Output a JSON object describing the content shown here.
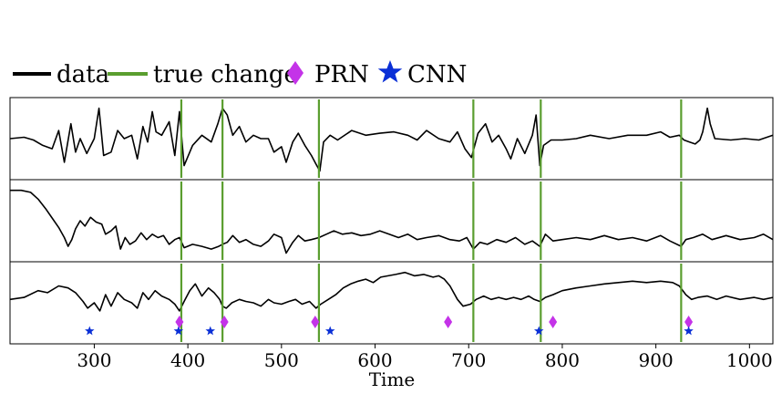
{
  "chart_data": {
    "type": "line",
    "xlabel": "Time",
    "xlim": [
      210,
      1025
    ],
    "xticks": [
      300,
      400,
      500,
      600,
      700,
      800,
      900,
      1000
    ],
    "grid": false,
    "legend": {
      "placement": "top-left",
      "entries": [
        {
          "label": "data",
          "marker": "line",
          "color": "#000000"
        },
        {
          "label": "true change",
          "marker": "line",
          "color": "#5a9e2f"
        },
        {
          "label": "PRN",
          "marker": "diamond",
          "color": "#c433e8"
        },
        {
          "label": "CNN",
          "marker": "star",
          "color": "#0a2fd6"
        }
      ]
    },
    "true_changes": [
      393,
      437,
      540,
      705,
      777,
      927
    ],
    "PRN_detections": [
      391,
      439,
      536,
      678,
      790,
      935
    ],
    "CNN_detections": [
      295,
      390,
      424,
      552,
      775,
      935
    ],
    "panels": [
      {
        "name": "",
        "points": [
          [
            210,
            0.5
          ],
          [
            225,
            0.52
          ],
          [
            235,
            0.48
          ],
          [
            245,
            0.4
          ],
          [
            255,
            0.35
          ],
          [
            262,
            0.62
          ],
          [
            268,
            0.15
          ],
          [
            275,
            0.72
          ],
          [
            280,
            0.3
          ],
          [
            285,
            0.5
          ],
          [
            292,
            0.28
          ],
          [
            300,
            0.5
          ],
          [
            305,
            0.95
          ],
          [
            310,
            0.25
          ],
          [
            318,
            0.3
          ],
          [
            325,
            0.62
          ],
          [
            332,
            0.5
          ],
          [
            340,
            0.55
          ],
          [
            346,
            0.2
          ],
          [
            352,
            0.68
          ],
          [
            357,
            0.45
          ],
          [
            362,
            0.9
          ],
          [
            366,
            0.6
          ],
          [
            372,
            0.55
          ],
          [
            380,
            0.75
          ],
          [
            386,
            0.25
          ],
          [
            391,
            0.9
          ],
          [
            396,
            0.1
          ],
          [
            405,
            0.4
          ],
          [
            415,
            0.55
          ],
          [
            425,
            0.45
          ],
          [
            432,
            0.72
          ],
          [
            437,
            0.95
          ],
          [
            442,
            0.85
          ],
          [
            448,
            0.55
          ],
          [
            455,
            0.68
          ],
          [
            462,
            0.45
          ],
          [
            470,
            0.55
          ],
          [
            478,
            0.5
          ],
          [
            486,
            0.5
          ],
          [
            492,
            0.3
          ],
          [
            500,
            0.38
          ],
          [
            505,
            0.15
          ],
          [
            512,
            0.45
          ],
          [
            518,
            0.58
          ],
          [
            525,
            0.4
          ],
          [
            532,
            0.25
          ],
          [
            537,
            0.12
          ],
          [
            541,
            0.02
          ],
          [
            545,
            0.45
          ],
          [
            552,
            0.55
          ],
          [
            560,
            0.48
          ],
          [
            575,
            0.62
          ],
          [
            590,
            0.55
          ],
          [
            605,
            0.58
          ],
          [
            620,
            0.6
          ],
          [
            635,
            0.55
          ],
          [
            645,
            0.48
          ],
          [
            655,
            0.62
          ],
          [
            668,
            0.5
          ],
          [
            680,
            0.45
          ],
          [
            688,
            0.6
          ],
          [
            696,
            0.35
          ],
          [
            703,
            0.22
          ],
          [
            710,
            0.58
          ],
          [
            718,
            0.72
          ],
          [
            725,
            0.45
          ],
          [
            732,
            0.55
          ],
          [
            740,
            0.35
          ],
          [
            745,
            0.2
          ],
          [
            752,
            0.5
          ],
          [
            760,
            0.28
          ],
          [
            768,
            0.55
          ],
          [
            772,
            0.85
          ],
          [
            776,
            0.1
          ],
          [
            780,
            0.4
          ],
          [
            788,
            0.48
          ],
          [
            800,
            0.48
          ],
          [
            815,
            0.5
          ],
          [
            830,
            0.55
          ],
          [
            850,
            0.5
          ],
          [
            870,
            0.55
          ],
          [
            890,
            0.55
          ],
          [
            905,
            0.6
          ],
          [
            915,
            0.52
          ],
          [
            925,
            0.55
          ],
          [
            930,
            0.48
          ],
          [
            936,
            0.45
          ],
          [
            942,
            0.42
          ],
          [
            947,
            0.48
          ],
          [
            950,
            0.6
          ],
          [
            955,
            0.95
          ],
          [
            958,
            0.72
          ],
          [
            963,
            0.5
          ],
          [
            980,
            0.48
          ],
          [
            995,
            0.5
          ],
          [
            1010,
            0.48
          ],
          [
            1025,
            0.55
          ]
        ]
      },
      {
        "name": "",
        "points": [
          [
            210,
            0.95
          ],
          [
            222,
            0.95
          ],
          [
            232,
            0.92
          ],
          [
            240,
            0.82
          ],
          [
            248,
            0.68
          ],
          [
            256,
            0.52
          ],
          [
            262,
            0.4
          ],
          [
            268,
            0.25
          ],
          [
            272,
            0.12
          ],
          [
            276,
            0.22
          ],
          [
            280,
            0.38
          ],
          [
            285,
            0.5
          ],
          [
            290,
            0.42
          ],
          [
            296,
            0.55
          ],
          [
            302,
            0.48
          ],
          [
            308,
            0.45
          ],
          [
            312,
            0.3
          ],
          [
            318,
            0.35
          ],
          [
            323,
            0.42
          ],
          [
            328,
            0.08
          ],
          [
            333,
            0.25
          ],
          [
            338,
            0.15
          ],
          [
            344,
            0.2
          ],
          [
            350,
            0.32
          ],
          [
            356,
            0.22
          ],
          [
            362,
            0.3
          ],
          [
            368,
            0.25
          ],
          [
            374,
            0.28
          ],
          [
            380,
            0.15
          ],
          [
            386,
            0.22
          ],
          [
            391,
            0.25
          ],
          [
            396,
            0.1
          ],
          [
            405,
            0.15
          ],
          [
            415,
            0.12
          ],
          [
            425,
            0.08
          ],
          [
            433,
            0.12
          ],
          [
            437,
            0.15
          ],
          [
            442,
            0.18
          ],
          [
            448,
            0.28
          ],
          [
            455,
            0.18
          ],
          [
            462,
            0.22
          ],
          [
            470,
            0.15
          ],
          [
            478,
            0.12
          ],
          [
            486,
            0.2
          ],
          [
            492,
            0.3
          ],
          [
            500,
            0.25
          ],
          [
            505,
            0.02
          ],
          [
            512,
            0.18
          ],
          [
            518,
            0.28
          ],
          [
            525,
            0.2
          ],
          [
            532,
            0.22
          ],
          [
            540,
            0.25
          ],
          [
            548,
            0.3
          ],
          [
            556,
            0.35
          ],
          [
            565,
            0.3
          ],
          [
            575,
            0.32
          ],
          [
            585,
            0.28
          ],
          [
            595,
            0.3
          ],
          [
            605,
            0.35
          ],
          [
            615,
            0.3
          ],
          [
            625,
            0.25
          ],
          [
            635,
            0.3
          ],
          [
            645,
            0.22
          ],
          [
            655,
            0.25
          ],
          [
            668,
            0.28
          ],
          [
            680,
            0.22
          ],
          [
            690,
            0.2
          ],
          [
            698,
            0.25
          ],
          [
            705,
            0.08
          ],
          [
            712,
            0.18
          ],
          [
            720,
            0.15
          ],
          [
            730,
            0.22
          ],
          [
            740,
            0.18
          ],
          [
            750,
            0.25
          ],
          [
            760,
            0.15
          ],
          [
            768,
            0.2
          ],
          [
            776,
            0.12
          ],
          [
            782,
            0.3
          ],
          [
            790,
            0.2
          ],
          [
            800,
            0.22
          ],
          [
            815,
            0.25
          ],
          [
            830,
            0.22
          ],
          [
            845,
            0.28
          ],
          [
            860,
            0.22
          ],
          [
            875,
            0.25
          ],
          [
            890,
            0.2
          ],
          [
            905,
            0.28
          ],
          [
            915,
            0.2
          ],
          [
            927,
            0.12
          ],
          [
            932,
            0.22
          ],
          [
            940,
            0.25
          ],
          [
            950,
            0.3
          ],
          [
            960,
            0.22
          ],
          [
            975,
            0.28
          ],
          [
            990,
            0.22
          ],
          [
            1005,
            0.25
          ],
          [
            1015,
            0.3
          ],
          [
            1025,
            0.22
          ]
        ]
      },
      {
        "name": "",
        "points": [
          [
            210,
            0.55
          ],
          [
            225,
            0.58
          ],
          [
            240,
            0.68
          ],
          [
            250,
            0.65
          ],
          [
            262,
            0.75
          ],
          [
            272,
            0.72
          ],
          [
            280,
            0.65
          ],
          [
            288,
            0.52
          ],
          [
            293,
            0.42
          ],
          [
            300,
            0.5
          ],
          [
            306,
            0.38
          ],
          [
            312,
            0.62
          ],
          [
            318,
            0.45
          ],
          [
            325,
            0.65
          ],
          [
            332,
            0.55
          ],
          [
            340,
            0.5
          ],
          [
            346,
            0.42
          ],
          [
            352,
            0.65
          ],
          [
            358,
            0.55
          ],
          [
            365,
            0.68
          ],
          [
            372,
            0.6
          ],
          [
            380,
            0.55
          ],
          [
            386,
            0.48
          ],
          [
            391,
            0.38
          ],
          [
            396,
            0.52
          ],
          [
            402,
            0.68
          ],
          [
            408,
            0.78
          ],
          [
            415,
            0.6
          ],
          [
            422,
            0.72
          ],
          [
            428,
            0.65
          ],
          [
            434,
            0.55
          ],
          [
            437,
            0.45
          ],
          [
            441,
            0.42
          ],
          [
            447,
            0.5
          ],
          [
            455,
            0.55
          ],
          [
            462,
            0.52
          ],
          [
            470,
            0.5
          ],
          [
            478,
            0.45
          ],
          [
            486,
            0.55
          ],
          [
            492,
            0.5
          ],
          [
            500,
            0.48
          ],
          [
            508,
            0.52
          ],
          [
            515,
            0.55
          ],
          [
            522,
            0.48
          ],
          [
            530,
            0.52
          ],
          [
            537,
            0.42
          ],
          [
            542,
            0.48
          ],
          [
            550,
            0.55
          ],
          [
            558,
            0.62
          ],
          [
            566,
            0.72
          ],
          [
            574,
            0.78
          ],
          [
            582,
            0.82
          ],
          [
            590,
            0.85
          ],
          [
            598,
            0.8
          ],
          [
            606,
            0.88
          ],
          [
            614,
            0.9
          ],
          [
            622,
            0.92
          ],
          [
            632,
            0.95
          ],
          [
            642,
            0.9
          ],
          [
            652,
            0.92
          ],
          [
            662,
            0.88
          ],
          [
            668,
            0.9
          ],
          [
            674,
            0.85
          ],
          [
            680,
            0.75
          ],
          [
            688,
            0.55
          ],
          [
            694,
            0.45
          ],
          [
            702,
            0.48
          ],
          [
            708,
            0.55
          ],
          [
            716,
            0.6
          ],
          [
            724,
            0.55
          ],
          [
            732,
            0.58
          ],
          [
            740,
            0.55
          ],
          [
            748,
            0.58
          ],
          [
            756,
            0.55
          ],
          [
            764,
            0.6
          ],
          [
            770,
            0.55
          ],
          [
            776,
            0.52
          ],
          [
            782,
            0.58
          ],
          [
            790,
            0.62
          ],
          [
            800,
            0.68
          ],
          [
            815,
            0.72
          ],
          [
            830,
            0.75
          ],
          [
            845,
            0.78
          ],
          [
            860,
            0.8
          ],
          [
            875,
            0.82
          ],
          [
            890,
            0.8
          ],
          [
            905,
            0.82
          ],
          [
            918,
            0.8
          ],
          [
            925,
            0.75
          ],
          [
            932,
            0.62
          ],
          [
            938,
            0.55
          ],
          [
            945,
            0.58
          ],
          [
            955,
            0.6
          ],
          [
            965,
            0.55
          ],
          [
            975,
            0.6
          ],
          [
            990,
            0.55
          ],
          [
            1005,
            0.58
          ],
          [
            1015,
            0.55
          ],
          [
            1025,
            0.58
          ]
        ]
      }
    ]
  }
}
